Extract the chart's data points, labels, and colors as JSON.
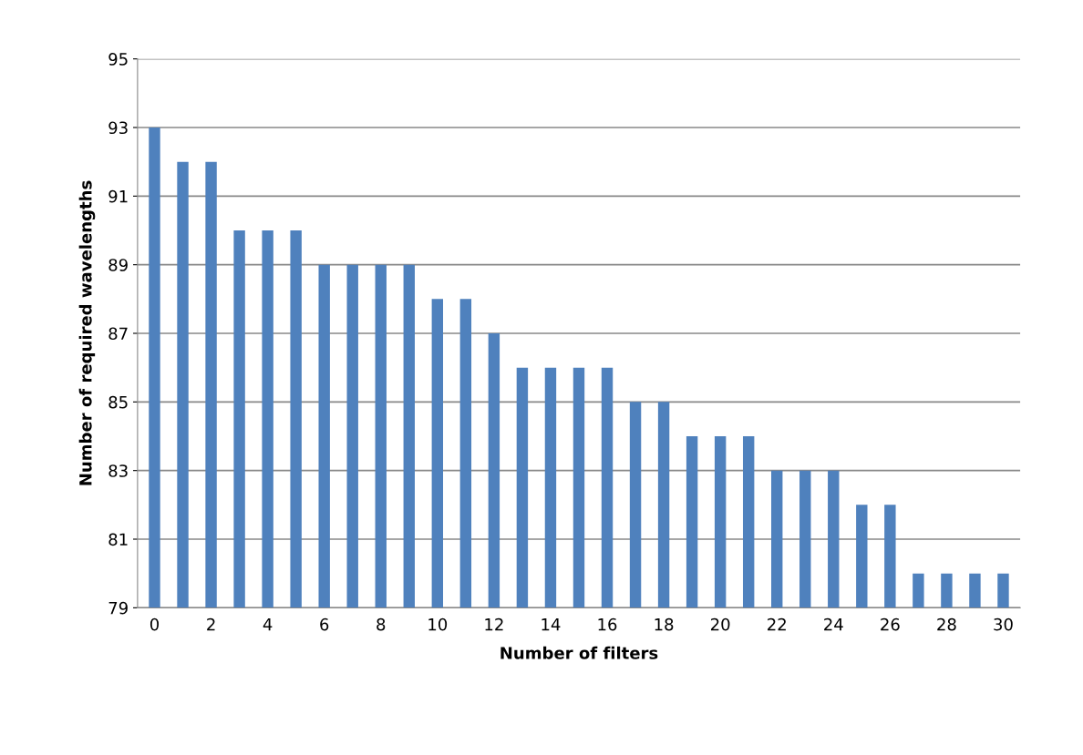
{
  "chart_data": {
    "type": "bar",
    "xlabel": "Number of filters",
    "ylabel": "Number of required wavelengths",
    "categories": [
      "0",
      null,
      "2",
      null,
      "4",
      null,
      "6",
      null,
      "8",
      null,
      "10",
      null,
      "12",
      null,
      "14",
      null,
      "16",
      null,
      "18",
      null,
      "20",
      null,
      "22",
      null,
      "24",
      null,
      "26",
      null,
      "28",
      null,
      "30"
    ],
    "values": [
      93,
      92,
      92,
      90,
      90,
      90,
      89,
      89,
      89,
      89,
      88,
      88,
      87,
      86,
      86,
      86,
      86,
      85,
      85,
      84,
      84,
      84,
      83,
      83,
      83,
      82,
      82,
      80,
      80,
      80,
      80
    ],
    "color": "#4f81bd",
    "ylim": [
      79,
      95
    ],
    "yticks": [
      79,
      81,
      83,
      85,
      87,
      89,
      91,
      93,
      95
    ],
    "grid": "y"
  }
}
